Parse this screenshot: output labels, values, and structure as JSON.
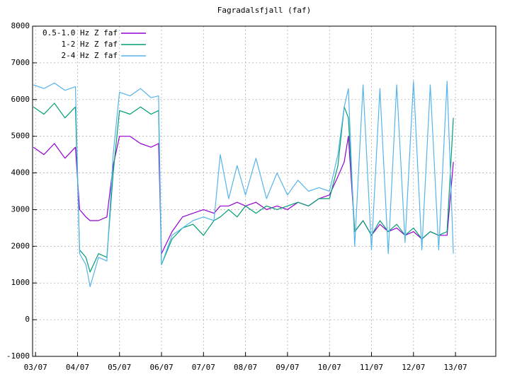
{
  "chart_data": {
    "type": "line",
    "title": "Fagradalsfjall (faf)",
    "x": [
      2.95,
      3.2,
      3.45,
      3.7,
      3.95,
      4.05,
      4.2,
      4.3,
      4.5,
      4.7,
      4.85,
      5.0,
      5.25,
      5.5,
      5.75,
      5.93,
      6.0,
      6.25,
      6.5,
      6.75,
      7.0,
      7.25,
      7.4,
      7.6,
      7.8,
      8.0,
      8.25,
      8.5,
      8.75,
      9.0,
      9.25,
      9.5,
      9.75,
      10.0,
      10.2,
      10.35,
      10.45,
      10.6,
      10.8,
      11.0,
      11.2,
      11.4,
      11.6,
      11.8,
      12.0,
      12.2,
      12.4,
      12.6,
      12.8,
      12.95
    ],
    "series": [
      {
        "name": "0.5-1.0 Hz Z faf",
        "color": "#9400d3",
        "values": [
          4700,
          4500,
          4800,
          4400,
          4700,
          3000,
          2800,
          2700,
          2700,
          2800,
          4200,
          5000,
          5000,
          4800,
          4700,
          4800,
          1800,
          2400,
          2800,
          2900,
          3000,
          2900,
          3100,
          3100,
          3200,
          3100,
          3200,
          3000,
          3100,
          3000,
          3200,
          3100,
          3300,
          3400,
          3900,
          4300,
          5000,
          2400,
          2700,
          2300,
          2600,
          2400,
          2500,
          2300,
          2400,
          2200,
          2400,
          2300,
          2300,
          4300
        ]
      },
      {
        "name": "1-2 Hz Z faf",
        "color": "#009e73",
        "values": [
          5800,
          5600,
          5900,
          5500,
          5800,
          1900,
          1700,
          1300,
          1800,
          1700,
          4000,
          5700,
          5600,
          5800,
          5600,
          5700,
          1500,
          2200,
          2500,
          2600,
          2300,
          2700,
          2800,
          3000,
          2800,
          3100,
          2900,
          3100,
          3000,
          3100,
          3200,
          3100,
          3300,
          3300,
          4200,
          5800,
          5500,
          2400,
          2700,
          2300,
          2700,
          2400,
          2600,
          2300,
          2500,
          2200,
          2400,
          2300,
          2400,
          5500
        ]
      },
      {
        "name": "2-4 Hz Z faf",
        "color": "#56b4e9",
        "values": [
          6400,
          6300,
          6450,
          6250,
          6350,
          1800,
          1500,
          900,
          1700,
          1600,
          4500,
          6200,
          6100,
          6300,
          6050,
          6100,
          1500,
          2300,
          2500,
          2700,
          2800,
          2700,
          4500,
          3300,
          4200,
          3400,
          4400,
          3300,
          4000,
          3400,
          3800,
          3500,
          3600,
          3500,
          4500,
          5800,
          6300,
          2000,
          6400,
          1900,
          6300,
          1800,
          6400,
          2100,
          6500,
          1900,
          6400,
          1900,
          6500,
          1800
        ]
      }
    ],
    "xlim": [
      2.93,
      13.96
    ],
    "xticks": [
      {
        "value": 3,
        "label": "03/07"
      },
      {
        "value": 4,
        "label": "04/07"
      },
      {
        "value": 5,
        "label": "05/07"
      },
      {
        "value": 6,
        "label": "06/07"
      },
      {
        "value": 7,
        "label": "07/07"
      },
      {
        "value": 8,
        "label": "08/07"
      },
      {
        "value": 9,
        "label": "09/07"
      },
      {
        "value": 10,
        "label": "10/07"
      },
      {
        "value": 11,
        "label": "11/07"
      },
      {
        "value": 12,
        "label": "12/07"
      },
      {
        "value": 13,
        "label": "13/07"
      }
    ],
    "ylim": [
      -1000,
      8000
    ],
    "yticks": [
      -1000,
      0,
      1000,
      2000,
      3000,
      4000,
      5000,
      6000,
      7000,
      8000
    ],
    "grid": true,
    "legend": "upper-left"
  }
}
